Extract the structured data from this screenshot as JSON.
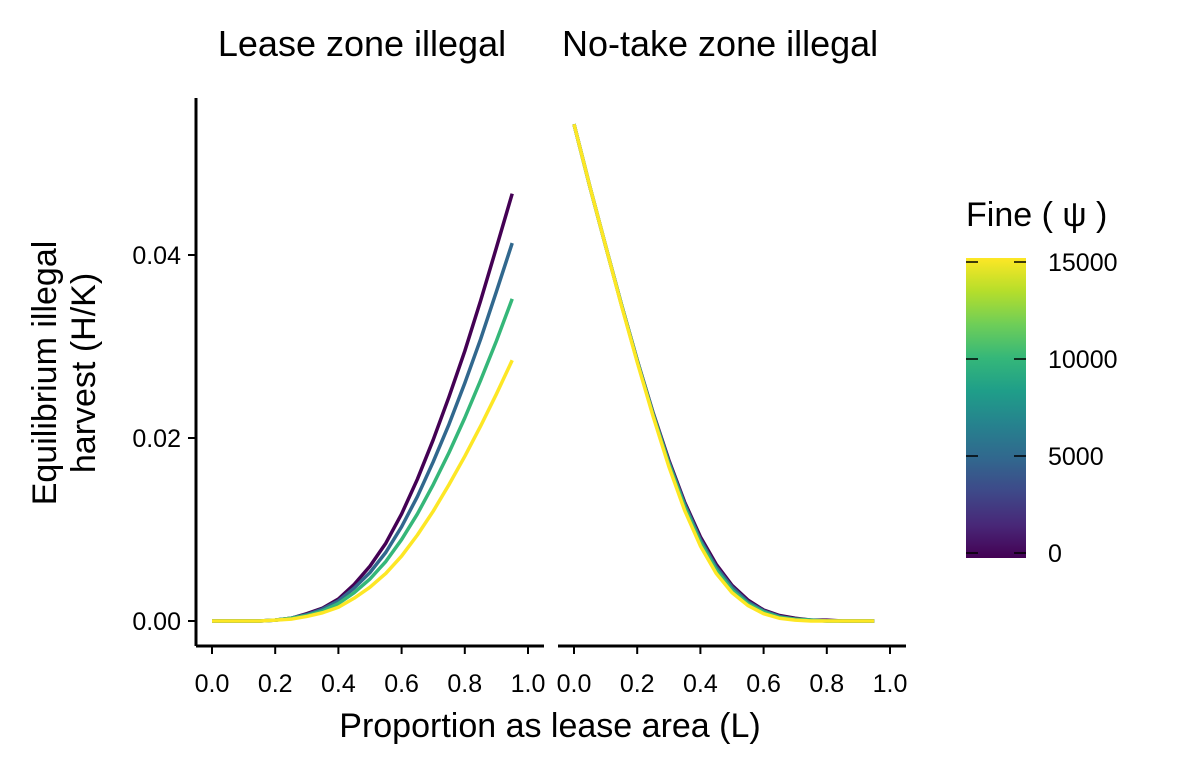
{
  "chart_data": {
    "type": "line",
    "facets": [
      {
        "title": "Lease zone illegal",
        "series": [
          {
            "fine": 0,
            "color": "#440154",
            "x": [
              0,
              0.05,
              0.1,
              0.15,
              0.2,
              0.25,
              0.3,
              0.35,
              0.4,
              0.45,
              0.5,
              0.55,
              0.6,
              0.65,
              0.7,
              0.75,
              0.8,
              0.85,
              0.9,
              0.95
            ],
            "y": [
              0,
              0,
              0,
              0,
              0.0001,
              0.0003,
              0.0008,
              0.0014,
              0.0024,
              0.004,
              0.006,
              0.0085,
              0.0117,
              0.0155,
              0.0198,
              0.0245,
              0.0295,
              0.035,
              0.0408,
              0.0467
            ]
          },
          {
            "fine": 5000,
            "color": "#31688e",
            "x": [
              0,
              0.05,
              0.1,
              0.15,
              0.2,
              0.25,
              0.3,
              0.35,
              0.4,
              0.45,
              0.5,
              0.55,
              0.6,
              0.65,
              0.7,
              0.75,
              0.8,
              0.85,
              0.9,
              0.95
            ],
            "y": [
              0,
              0,
              0,
              0,
              0.0001,
              0.0003,
              0.0007,
              0.0013,
              0.0022,
              0.0036,
              0.0053,
              0.0075,
              0.0103,
              0.0136,
              0.0174,
              0.0215,
              0.026,
              0.0308,
              0.036,
              0.0413
            ]
          },
          {
            "fine": 10000,
            "color": "#35b779",
            "x": [
              0,
              0.05,
              0.1,
              0.15,
              0.2,
              0.25,
              0.3,
              0.35,
              0.4,
              0.45,
              0.5,
              0.55,
              0.6,
              0.65,
              0.7,
              0.75,
              0.8,
              0.85,
              0.9,
              0.95
            ],
            "y": [
              0,
              0,
              0,
              0,
              0.0001,
              0.0003,
              0.0006,
              0.0011,
              0.0019,
              0.0031,
              0.0046,
              0.0065,
              0.0089,
              0.0117,
              0.0149,
              0.0184,
              0.0222,
              0.0263,
              0.0306,
              0.0352
            ]
          },
          {
            "fine": 15000,
            "color": "#fde725",
            "x": [
              0,
              0.05,
              0.1,
              0.15,
              0.2,
              0.25,
              0.3,
              0.35,
              0.4,
              0.45,
              0.5,
              0.55,
              0.6,
              0.65,
              0.7,
              0.75,
              0.8,
              0.85,
              0.9,
              0.95
            ],
            "y": [
              0,
              0,
              0,
              0,
              0.0001,
              0.0002,
              0.0005,
              0.0009,
              0.0015,
              0.0025,
              0.0037,
              0.0052,
              0.0071,
              0.0094,
              0.012,
              0.0149,
              0.018,
              0.0213,
              0.0248,
              0.0285
            ]
          }
        ]
      },
      {
        "title": "No-take zone illegal",
        "series": [
          {
            "fine": 0,
            "color": "#440154",
            "x": [
              0,
              0.05,
              0.1,
              0.15,
              0.2,
              0.25,
              0.3,
              0.35,
              0.4,
              0.45,
              0.5,
              0.55,
              0.6,
              0.65,
              0.7,
              0.75,
              0.8,
              0.85,
              0.9,
              0.95
            ],
            "y": [
              0.0543,
              0.0475,
              0.041,
              0.0346,
              0.0285,
              0.0228,
              0.0176,
              0.013,
              0.0092,
              0.0062,
              0.0039,
              0.0023,
              0.0012,
              0.0006,
              0.0003,
              0.0001,
              0.0001,
              0,
              0,
              0
            ]
          },
          {
            "fine": 5000,
            "color": "#31688e",
            "x": [
              0,
              0.05,
              0.1,
              0.15,
              0.2,
              0.25,
              0.3,
              0.35,
              0.4,
              0.45,
              0.5,
              0.55,
              0.6,
              0.65,
              0.7,
              0.75,
              0.8,
              0.85,
              0.9,
              0.95
            ],
            "y": [
              0.0543,
              0.0475,
              0.041,
              0.0346,
              0.0285,
              0.0227,
              0.0174,
              0.0128,
              0.0089,
              0.0059,
              0.0037,
              0.0021,
              0.0011,
              0.0005,
              0.0002,
              0.0001,
              0,
              0,
              0,
              0
            ]
          },
          {
            "fine": 10000,
            "color": "#35b779",
            "x": [
              0,
              0.05,
              0.1,
              0.15,
              0.2,
              0.25,
              0.3,
              0.35,
              0.4,
              0.45,
              0.5,
              0.55,
              0.6,
              0.65,
              0.7,
              0.75,
              0.8,
              0.85,
              0.9,
              0.95
            ],
            "y": [
              0.0543,
              0.0475,
              0.041,
              0.0346,
              0.0284,
              0.0226,
              0.0172,
              0.0125,
              0.0086,
              0.0056,
              0.0034,
              0.0019,
              0.001,
              0.0004,
              0.0002,
              0.0001,
              0,
              0,
              0,
              0
            ]
          },
          {
            "fine": 15000,
            "color": "#fde725",
            "x": [
              0,
              0.05,
              0.1,
              0.15,
              0.2,
              0.25,
              0.3,
              0.35,
              0.4,
              0.45,
              0.5,
              0.55,
              0.6,
              0.65,
              0.7,
              0.75,
              0.8,
              0.85,
              0.9,
              0.95
            ],
            "y": [
              0.0543,
              0.0475,
              0.041,
              0.0345,
              0.0283,
              0.0224,
              0.0169,
              0.0121,
              0.0082,
              0.0052,
              0.0031,
              0.0017,
              0.0008,
              0.0003,
              0.0001,
              0,
              0,
              0,
              0,
              0
            ]
          }
        ]
      }
    ],
    "xlabel": "Proportion as lease area (L)",
    "ylabel": [
      "Equilibrium illegal",
      "harvest (H/K)"
    ],
    "xlim": [
      0,
      1.0
    ],
    "ylim": [
      0,
      0.055
    ],
    "x_ticks": [
      "0.0",
      "0.2",
      "0.4",
      "0.6",
      "0.8",
      "1.0"
    ],
    "y_ticks": [
      "0.00",
      "0.02",
      "0.04"
    ],
    "x_tick_values": [
      0,
      0.2,
      0.4,
      0.6,
      0.8,
      1.0
    ],
    "y_tick_values": [
      0,
      0.02,
      0.04
    ],
    "grid": false,
    "legend": {
      "title": "Fine ( ψ )",
      "placement": "right",
      "type": "colorbar",
      "range": [
        0,
        15000
      ],
      "labels": [
        "0",
        "5000",
        "10000",
        "15000"
      ],
      "values": [
        0,
        5000,
        10000,
        15000
      ],
      "colors": [
        "#440154",
        "#482878",
        "#3e4989",
        "#31688e",
        "#26828e",
        "#1f9e89",
        "#35b779",
        "#6ece58",
        "#b5de2b",
        "#fde725"
      ]
    }
  }
}
